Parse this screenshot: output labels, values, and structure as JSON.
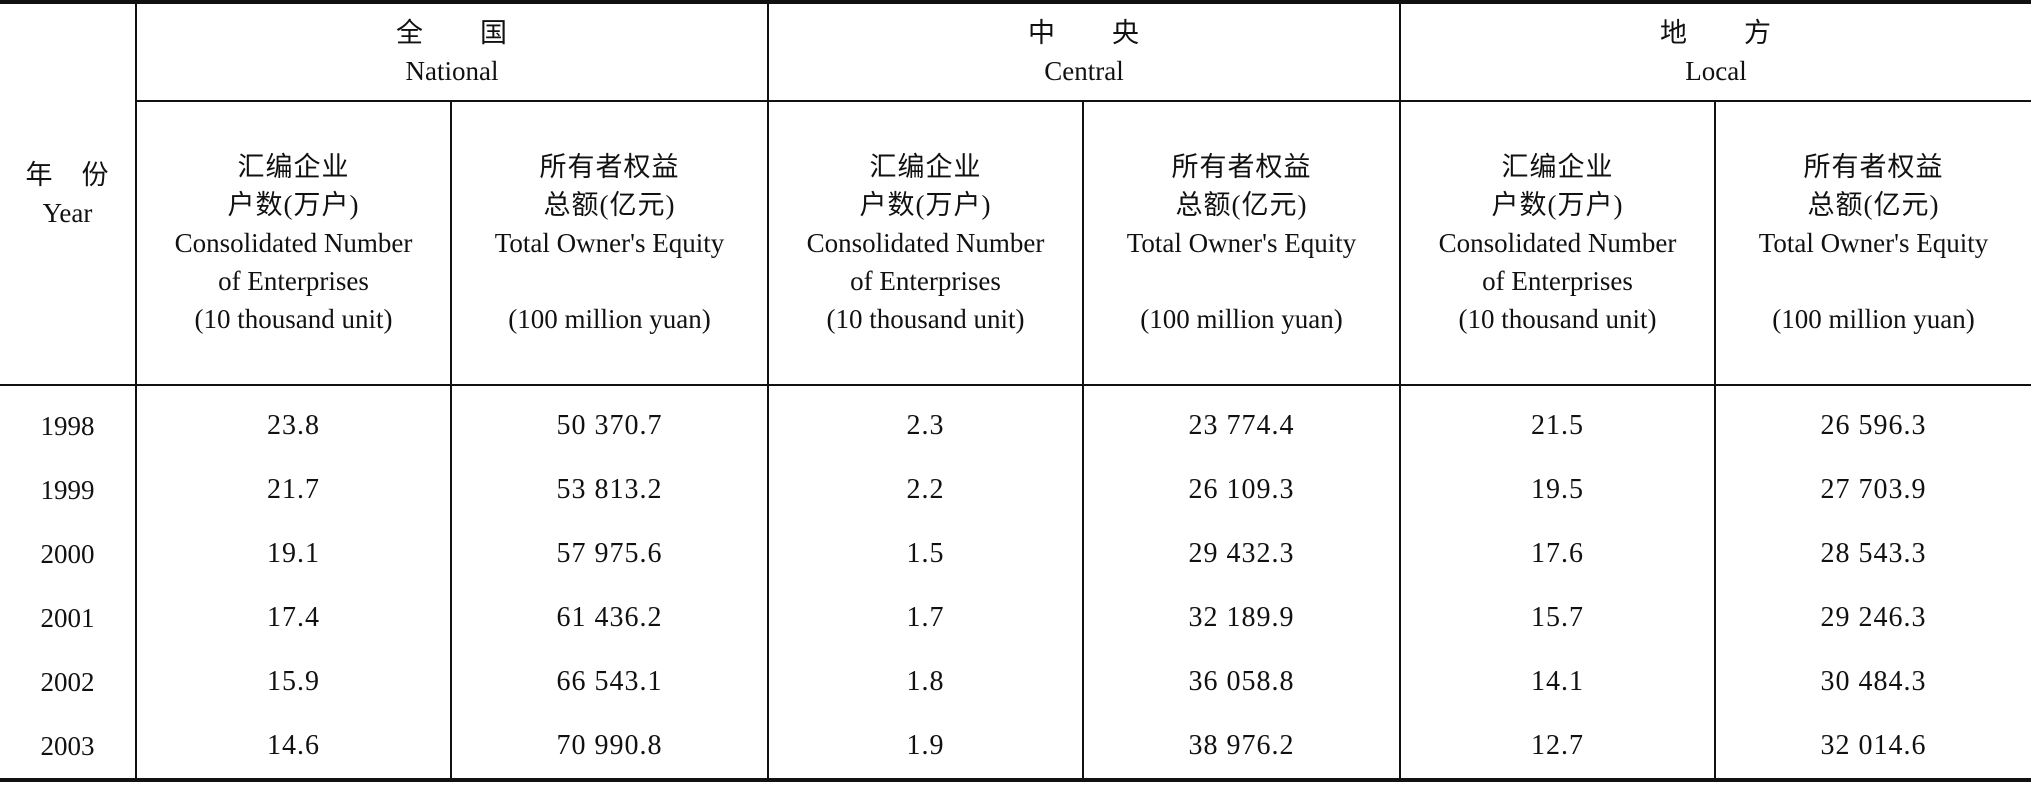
{
  "table": {
    "year_header": {
      "zh": "年　份",
      "en": "Year"
    },
    "groups": [
      {
        "zh": "全　　国",
        "en": "National"
      },
      {
        "zh": "中　　央",
        "en": "Central"
      },
      {
        "zh": "地　　方",
        "en": "Local"
      }
    ],
    "columns": [
      {
        "zh": [
          "汇编企业",
          "户数(万户)"
        ],
        "en": [
          "Consolidated Number",
          "of Enterprises",
          "(10 thousand unit)"
        ]
      },
      {
        "zh": [
          "所有者权益",
          "总额(亿元)"
        ],
        "en": [
          "Total Owner's Equity",
          "(100 million yuan)"
        ]
      },
      {
        "zh": [
          "汇编企业",
          "户数(万户)"
        ],
        "en": [
          "Consolidated Number",
          "of Enterprises",
          "(10 thousand unit)"
        ]
      },
      {
        "zh": [
          "所有者权益",
          "总额(亿元)"
        ],
        "en": [
          "Total Owner's Equity",
          "(100 million yuan)"
        ]
      },
      {
        "zh": [
          "汇编企业",
          "户数(万户)"
        ],
        "en": [
          "Consolidated Number",
          "of Enterprises",
          "(10 thousand unit)"
        ]
      },
      {
        "zh": [
          "所有者权益",
          "总额(亿元)"
        ],
        "en": [
          "Total Owner's Equity",
          "(100 million yuan)"
        ]
      }
    ],
    "rows": [
      [
        "1998",
        "23.8",
        "50 370.7",
        "2.3",
        "23 774.4",
        "21.5",
        "26 596.3"
      ],
      [
        "1999",
        "21.7",
        "53 813.2",
        "2.2",
        "26 109.3",
        "19.5",
        "27 703.9"
      ],
      [
        "2000",
        "19.1",
        "57 975.6",
        "1.5",
        "29 432.3",
        "17.6",
        "28 543.3"
      ],
      [
        "2001",
        "17.4",
        "61 436.2",
        "1.7",
        "32 189.9",
        "15.7",
        "29 246.3"
      ],
      [
        "2002",
        "15.9",
        "66 543.1",
        "1.8",
        "36 058.8",
        "14.1",
        "30 484.3"
      ],
      [
        "2003",
        "14.6",
        "70 990.8",
        "1.9",
        "38 976.2",
        "12.7",
        "32 014.6"
      ]
    ]
  }
}
